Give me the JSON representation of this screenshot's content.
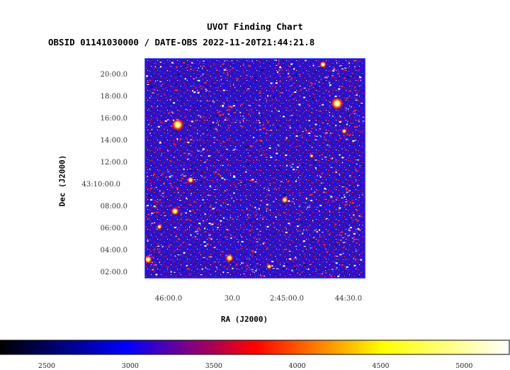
{
  "chart_data": {
    "type": "heatmap",
    "title": "UVOT Finding Chart",
    "subtitle": "OBSID 01141030000 / DATE-OBS 2022-11-20T21:44:21.8",
    "xlabel": "RA (J2000)",
    "ylabel": "Dec (J2000)",
    "x_ticks": [
      "46:00.0",
      "30.0",
      "2:45:00.0",
      "44:30.0"
    ],
    "y_ticks": [
      "20:00.0",
      "18:00.0",
      "16:00.0",
      "14:00.0",
      "12:00.0",
      "43:10:00.0",
      "08:00.0",
      "06:00.0",
      "04:00.0",
      "02:00.0"
    ],
    "colorbar": {
      "ticks": [
        2500,
        3000,
        3500,
        4000,
        4500,
        5000
      ],
      "range": [
        2220,
        5270
      ],
      "colors": [
        "#000000",
        "#0000ff",
        "#ff0000",
        "#ffff00",
        "#ffffff"
      ]
    }
  }
}
